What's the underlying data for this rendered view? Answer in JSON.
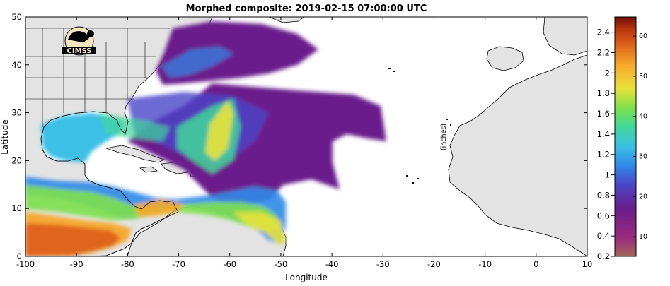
{
  "title": "Morphed composite: 2019-02-15 07:00:00 UTC",
  "xlabel": "Longitude",
  "ylabel": "Latitude",
  "x_ticks": [
    "-100",
    "-90",
    "-80",
    "-70",
    "-60",
    "-50",
    "-40",
    "-30",
    "-20",
    "-10",
    "0",
    "10"
  ],
  "y_ticks": [
    "0",
    "10",
    "20",
    "30",
    "40",
    "50"
  ],
  "colorbar": {
    "label": "(inches)",
    "ticks": [
      "0.2",
      "0.4",
      "0.6",
      "0.8",
      "1",
      "1.2",
      "1.4",
      "1.6",
      "1.8",
      "2",
      "2.2",
      "2.4"
    ],
    "secondary_ticks": [
      "10",
      "20",
      "30",
      "40",
      "50",
      "60"
    ],
    "colors": [
      "#a3645a",
      "#9a2a7e",
      "#6a1e8c",
      "#4b45c8",
      "#2f8ae8",
      "#3cc0e6",
      "#40d79a",
      "#7de04c",
      "#e8e23a",
      "#f7a82a",
      "#e0651c",
      "#b8340c",
      "#6e0f0c"
    ]
  },
  "logo": {
    "text": "CIMSS"
  },
  "colors": {
    "land": "#e3e3e3",
    "ocean": "#ffffff",
    "coast": "#000000"
  }
}
